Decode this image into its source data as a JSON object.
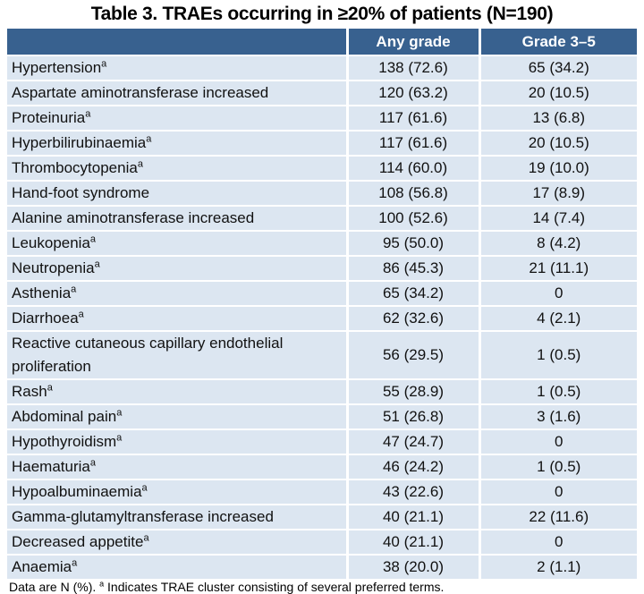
{
  "title": "Table 3. TRAEs occurring in ≥20% of patients (N=190)",
  "columns": [
    "",
    "Any grade",
    "Grade 3–5"
  ],
  "footnote_marker": "a",
  "rows": [
    {
      "label": "Hypertension",
      "cluster": true,
      "any_grade": "138 (72.6)",
      "grade_3_5": "65 (34.2)"
    },
    {
      "label": "Aspartate aminotransferase increased",
      "cluster": false,
      "any_grade": "120 (63.2)",
      "grade_3_5": "20 (10.5)"
    },
    {
      "label": "Proteinuria",
      "cluster": true,
      "any_grade": "117 (61.6)",
      "grade_3_5": "13 (6.8)"
    },
    {
      "label": "Hyperbilirubinaemia",
      "cluster": true,
      "any_grade": "117 (61.6)",
      "grade_3_5": "20 (10.5)"
    },
    {
      "label": "Thrombocytopenia",
      "cluster": true,
      "any_grade": "114 (60.0)",
      "grade_3_5": "19 (10.0)"
    },
    {
      "label": "Hand-foot syndrome",
      "cluster": false,
      "any_grade": "108 (56.8)",
      "grade_3_5": "17 (8.9)"
    },
    {
      "label": "Alanine aminotransferase increased",
      "cluster": false,
      "any_grade": "100 (52.6)",
      "grade_3_5": "14 (7.4)"
    },
    {
      "label": "Leukopenia",
      "cluster": true,
      "any_grade": "95 (50.0)",
      "grade_3_5": "8 (4.2)"
    },
    {
      "label": "Neutropenia",
      "cluster": true,
      "any_grade": "86 (45.3)",
      "grade_3_5": "21 (11.1)"
    },
    {
      "label": "Asthenia",
      "cluster": true,
      "any_grade": "65 (34.2)",
      "grade_3_5": "0"
    },
    {
      "label": "Diarrhoea",
      "cluster": true,
      "any_grade": "62 (32.6)",
      "grade_3_5": "4 (2.1)"
    },
    {
      "label": "Reactive cutaneous capillary endothelial proliferation",
      "cluster": false,
      "any_grade": "56 (29.5)",
      "grade_3_5": "1 (0.5)"
    },
    {
      "label": "Rash",
      "cluster": true,
      "any_grade": "55 (28.9)",
      "grade_3_5": "1 (0.5)"
    },
    {
      "label": "Abdominal pain",
      "cluster": true,
      "any_grade": "51 (26.8)",
      "grade_3_5": "3 (1.6)"
    },
    {
      "label": "Hypothyroidism",
      "cluster": true,
      "any_grade": "47 (24.7)",
      "grade_3_5": "0"
    },
    {
      "label": "Haematuria",
      "cluster": true,
      "any_grade": "46 (24.2)",
      "grade_3_5": "1 (0.5)"
    },
    {
      "label": "Hypoalbuminaemia",
      "cluster": true,
      "any_grade": "43 (22.6)",
      "grade_3_5": "0"
    },
    {
      "label": "Gamma-glutamyltransferase increased",
      "cluster": false,
      "any_grade": "40 (21.1)",
      "grade_3_5": "22 (11.6)"
    },
    {
      "label": "Decreased appetite",
      "cluster": true,
      "any_grade": "40 (21.1)",
      "grade_3_5": "0"
    },
    {
      "label": "Anaemia",
      "cluster": true,
      "any_grade": "38 (20.0)",
      "grade_3_5": "2 (1.1)"
    }
  ],
  "footnote": {
    "before": "Data are N (%).",
    "marker": "a",
    "after": "Indicates TRAE cluster consisting of several preferred terms."
  },
  "colors": {
    "header_bg": "#38618F",
    "header_text": "#FFFFFF",
    "row_bg": "#DCE6F1",
    "body_text": "#111111",
    "sep": "#FFFFFF",
    "page_bg": "#FFFFFF"
  }
}
